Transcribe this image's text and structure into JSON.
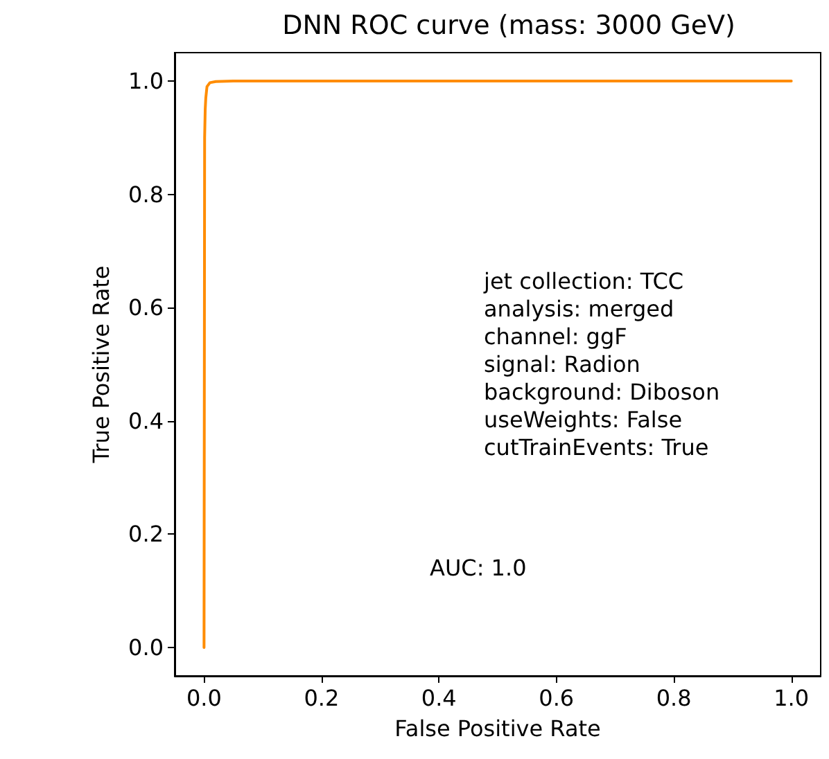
{
  "chart_data": {
    "type": "line",
    "title": "DNN ROC curve (mass: 3000 GeV)",
    "xlabel": "False Positive Rate",
    "ylabel": "True Positive Rate",
    "annotations": [
      "jet collection: TCC\nanalysis: merged\nchannel: ggF\nsignal: Radion\nbackground: Diboson\nuseWeights: False\ncutTrainEvents: True",
      "AUC: 1.0"
    ],
    "series": [
      {
        "color": "#ff8c00",
        "x": [
          0,
          0.001,
          0.002,
          0.003,
          0.005,
          0.01,
          0.02,
          0.05,
          0.2,
          0.5,
          1
        ],
        "values": [
          0,
          0.9,
          0.95,
          0.97,
          0.99,
          0.997,
          0.999,
          1,
          1,
          1,
          1
        ]
      }
    ],
    "xlim": [
      -0.05,
      1.05
    ],
    "ylim": [
      -0.05,
      1.05
    ],
    "xticks": [
      {
        "value": 0,
        "label": "0.0"
      },
      0.2,
      0.4,
      0.6,
      0.8,
      {
        "value": 1,
        "label": "1.0"
      }
    ],
    "yticks": [
      {
        "value": 0,
        "label": "0.0"
      },
      0.2,
      0.4,
      0.6,
      0.8,
      {
        "value": 1,
        "label": "1.0"
      }
    ],
    "grid": false,
    "marker": "none",
    "line_style": "solid"
  }
}
